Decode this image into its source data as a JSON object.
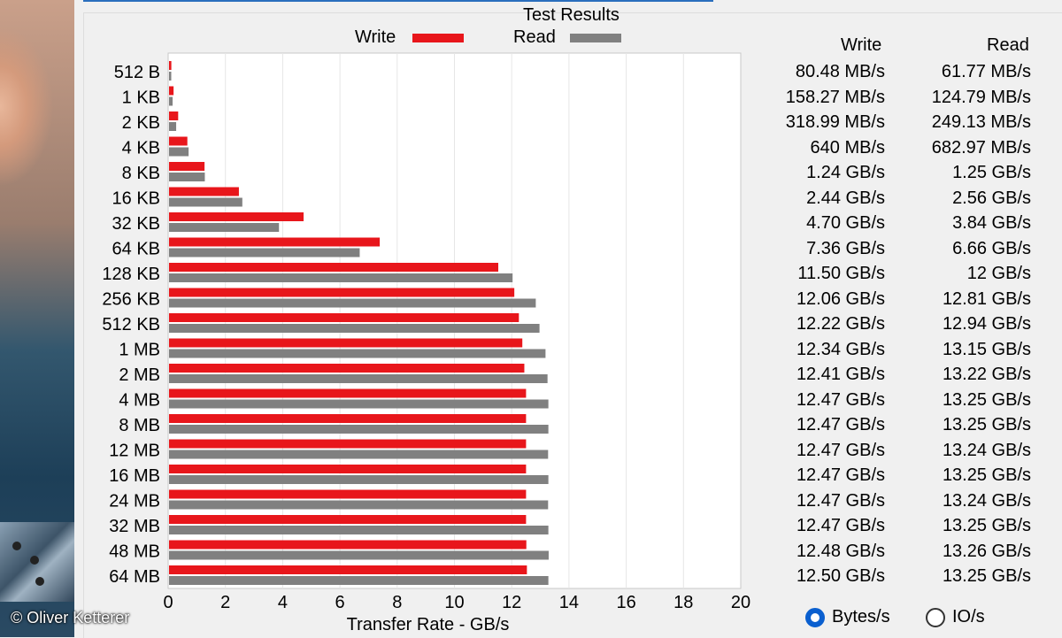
{
  "photo": {
    "copyright": "© Oliver Ketterer"
  },
  "chart_data": {
    "type": "bar",
    "orientation": "horizontal",
    "title": "Test Results",
    "xlabel": "Transfer Rate - GB/s",
    "ylabel": "",
    "xlim": [
      0,
      20
    ],
    "xticks": [
      0,
      2,
      4,
      6,
      8,
      10,
      12,
      14,
      16,
      18,
      20
    ],
    "grid": true,
    "legend_position": "top",
    "categories": [
      "512 B",
      "1 KB",
      "2 KB",
      "4 KB",
      "8 KB",
      "16 KB",
      "32 KB",
      "64 KB",
      "128 KB",
      "256 KB",
      "512 KB",
      "1 MB",
      "2 MB",
      "4 MB",
      "8 MB",
      "12 MB",
      "16 MB",
      "24 MB",
      "32 MB",
      "48 MB",
      "64 MB"
    ],
    "series": [
      {
        "name": "Write",
        "color": "#e8161b",
        "values": [
          0.08048,
          0.15827,
          0.31899,
          0.64,
          1.24,
          2.44,
          4.7,
          7.36,
          11.5,
          12.06,
          12.22,
          12.34,
          12.41,
          12.47,
          12.47,
          12.47,
          12.47,
          12.47,
          12.47,
          12.48,
          12.5
        ]
      },
      {
        "name": "Read",
        "color": "#808080",
        "values": [
          0.06177,
          0.12479,
          0.24913,
          0.68297,
          1.25,
          2.56,
          3.84,
          6.66,
          12.0,
          12.81,
          12.94,
          13.15,
          13.22,
          13.25,
          13.25,
          13.24,
          13.25,
          13.24,
          13.25,
          13.26,
          13.25
        ]
      }
    ]
  },
  "table": {
    "write_header": "Write",
    "read_header": "Read",
    "write_values": [
      "80.48 MB/s",
      "158.27 MB/s",
      "318.99 MB/s",
      "640 MB/s",
      "1.24 GB/s",
      "2.44 GB/s",
      "4.70 GB/s",
      "7.36 GB/s",
      "11.50 GB/s",
      "12.06 GB/s",
      "12.22 GB/s",
      "12.34 GB/s",
      "12.41 GB/s",
      "12.47 GB/s",
      "12.47 GB/s",
      "12.47 GB/s",
      "12.47 GB/s",
      "12.47 GB/s",
      "12.47 GB/s",
      "12.48 GB/s",
      "12.50 GB/s"
    ],
    "read_values": [
      "61.77 MB/s",
      "124.79 MB/s",
      "249.13 MB/s",
      "682.97 MB/s",
      "1.25 GB/s",
      "2.56 GB/s",
      "3.84 GB/s",
      "6.66 GB/s",
      "12 GB/s",
      "12.81 GB/s",
      "12.94 GB/s",
      "13.15 GB/s",
      "13.22 GB/s",
      "13.25 GB/s",
      "13.25 GB/s",
      "13.24 GB/s",
      "13.25 GB/s",
      "13.24 GB/s",
      "13.25 GB/s",
      "13.26 GB/s",
      "13.25 GB/s"
    ]
  },
  "display_mode": {
    "options": [
      {
        "label": "Bytes/s",
        "checked": true
      },
      {
        "label": "IO/s",
        "checked": false
      }
    ]
  }
}
